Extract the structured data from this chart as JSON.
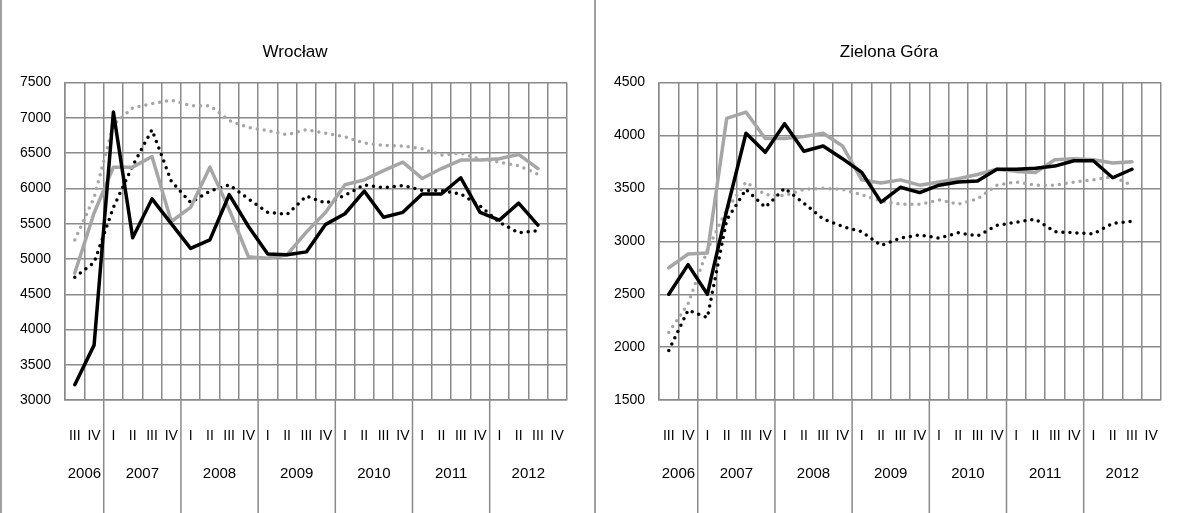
{
  "chart_data": [
    {
      "type": "line",
      "title": "Wrocław",
      "categories": [
        "III",
        "IV",
        "I",
        "II",
        "III",
        "IV",
        "I",
        "II",
        "III",
        "IV",
        "I",
        "II",
        "III",
        "IV",
        "I",
        "II",
        "III",
        "IV",
        "I",
        "II",
        "III",
        "IV",
        "I",
        "II",
        "III",
        "IV"
      ],
      "series": [
        {
          "color": "#000000",
          "line_style": "solid",
          "values": [
            3220,
            3780,
            7080,
            5300,
            5850,
            5500,
            5150,
            5270,
            5910,
            5460,
            5070,
            5060,
            5100,
            5490,
            5640,
            5960,
            5590,
            5660,
            5920,
            5920,
            6150,
            5660,
            5550,
            5790,
            5480,
            null
          ]
        },
        {
          "color": "#a6a6a6",
          "line_style": "solid",
          "values": [
            4800,
            5650,
            6300,
            6300,
            6450,
            5530,
            5730,
            6300,
            5700,
            5030,
            5010,
            5060,
            5380,
            5660,
            6050,
            6120,
            6250,
            6370,
            6140,
            6280,
            6400,
            6400,
            6420,
            6480,
            6280,
            null
          ]
        },
        {
          "color": "#000000",
          "line_style": "dotted",
          "values": [
            4740,
            4950,
            5730,
            6320,
            6830,
            6100,
            5800,
            5960,
            6050,
            5850,
            5660,
            5630,
            5890,
            5790,
            5900,
            6050,
            6010,
            6040,
            5970,
            5970,
            5920,
            5750,
            5520,
            5370,
            5400,
            null
          ]
        },
        {
          "color": "#a6a6a6",
          "line_style": "dotted",
          "values": [
            5270,
            5870,
            6900,
            7140,
            7200,
            7250,
            7170,
            7170,
            6960,
            6860,
            6820,
            6760,
            6830,
            6780,
            6730,
            6640,
            6610,
            6600,
            6560,
            6470,
            6500,
            6410,
            6370,
            6320,
            6200,
            null
          ]
        }
      ],
      "ylim": [
        3000,
        7500
      ],
      "yticks": [
        3000,
        3500,
        4000,
        4500,
        5000,
        5500,
        6000,
        6500,
        7000,
        7500
      ],
      "grid": true,
      "annotations": [
        "2006",
        "2007",
        "2008",
        "2009",
        "2010",
        "2011",
        "2012"
      ]
    },
    {
      "type": "line",
      "title": "Zielona Góra",
      "categories": [
        "III",
        "IV",
        "I",
        "II",
        "III",
        "IV",
        "I",
        "II",
        "III",
        "IV",
        "I",
        "II",
        "III",
        "IV",
        "I",
        "II",
        "III",
        "IV",
        "I",
        "II",
        "III",
        "IV",
        "I",
        "II",
        "III",
        "IV"
      ],
      "series": [
        {
          "color": "#000000",
          "line_style": "solid",
          "values": [
            2500,
            2780,
            2500,
            3290,
            4020,
            3840,
            4110,
            3850,
            3900,
            3780,
            3650,
            3370,
            3510,
            3460,
            3530,
            3560,
            3570,
            3680,
            3680,
            3690,
            3710,
            3760,
            3760,
            3600,
            3680,
            null
          ]
        },
        {
          "color": "#a6a6a6",
          "line_style": "solid",
          "values": [
            2750,
            2880,
            2890,
            4160,
            4220,
            3970,
            3970,
            3990,
            4020,
            3900,
            3580,
            3550,
            3580,
            3530,
            3560,
            3590,
            3630,
            3680,
            3660,
            3650,
            3770,
            3780,
            3770,
            3740,
            3750,
            null
          ]
        },
        {
          "color": "#000000",
          "line_style": "dotted",
          "values": [
            1970,
            2350,
            2280,
            3200,
            3490,
            3320,
            3500,
            3360,
            3210,
            3140,
            3090,
            2960,
            3030,
            3060,
            3030,
            3080,
            3050,
            3150,
            3180,
            3210,
            3090,
            3080,
            3070,
            3170,
            3190,
            null
          ]
        },
        {
          "color": "#a6a6a6",
          "line_style": "dotted",
          "values": [
            2140,
            2410,
            2920,
            3300,
            3560,
            3440,
            3430,
            3490,
            3500,
            3490,
            3440,
            3380,
            3350,
            3350,
            3390,
            3350,
            3400,
            3530,
            3560,
            3530,
            3530,
            3560,
            3580,
            3610,
            3530,
            null
          ]
        }
      ],
      "ylim": [
        1500,
        4500
      ],
      "yticks": [
        1500,
        2000,
        2500,
        3000,
        3500,
        4000,
        4500
      ],
      "grid": true,
      "annotations": [
        "2006",
        "2007",
        "2008",
        "2009",
        "2010",
        "2011",
        "2012"
      ]
    }
  ]
}
